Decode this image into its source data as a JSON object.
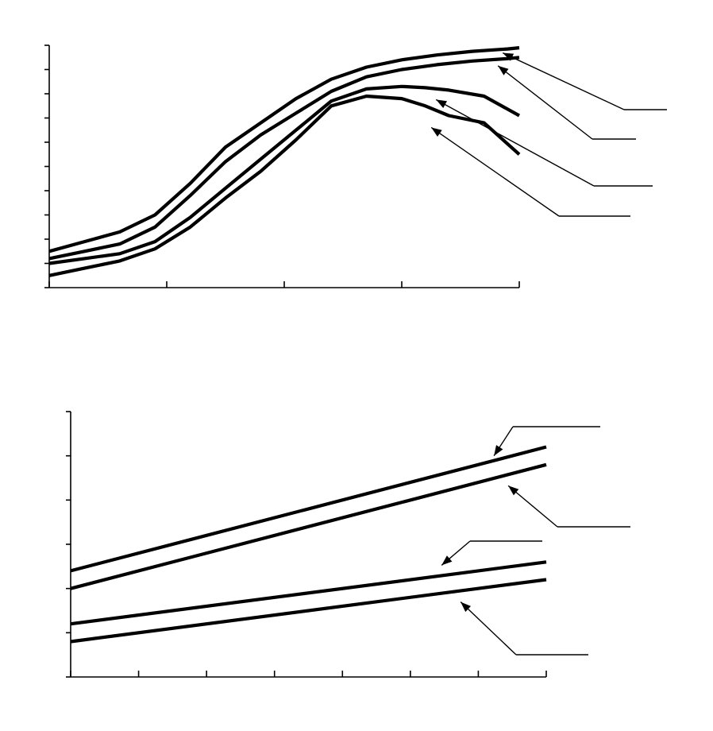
{
  "colors": {
    "ink": "#000000",
    "background": "#ffffff"
  },
  "chart_data": [
    {
      "type": "line",
      "title": "",
      "xlabel": "",
      "ylabel": "",
      "x_ticks": 5,
      "y_ticks": 11,
      "xlim": [
        0,
        4
      ],
      "ylim": [
        0,
        10
      ],
      "grid": false,
      "series": [
        {
          "x": [
            0,
            0.3,
            0.6,
            0.9,
            1.2,
            1.5,
            1.8,
            2.1,
            2.4,
            2.7,
            3.0,
            3.3,
            3.6,
            3.9,
            4.0
          ],
          "y": [
            1.5,
            1.9,
            2.3,
            3.0,
            4.3,
            5.8,
            6.8,
            7.8,
            8.6,
            9.1,
            9.4,
            9.6,
            9.75,
            9.85,
            9.9
          ]
        },
        {
          "x": [
            0,
            0.3,
            0.6,
            0.9,
            1.2,
            1.5,
            1.8,
            2.1,
            2.4,
            2.7,
            3.0,
            3.3,
            3.6,
            3.9,
            4.0
          ],
          "y": [
            1.2,
            1.5,
            1.8,
            2.5,
            3.8,
            5.2,
            6.3,
            7.2,
            8.1,
            8.7,
            9.0,
            9.2,
            9.35,
            9.45,
            9.5
          ]
        },
        {
          "x": [
            0,
            0.3,
            0.6,
            0.9,
            1.2,
            1.5,
            1.8,
            2.1,
            2.4,
            2.7,
            3.0,
            3.2,
            3.4,
            3.7,
            4.0
          ],
          "y": [
            1.0,
            1.2,
            1.4,
            1.9,
            2.9,
            4.1,
            5.3,
            6.5,
            7.7,
            8.2,
            8.3,
            8.25,
            8.15,
            7.9,
            7.1
          ]
        },
        {
          "x": [
            0,
            0.3,
            0.6,
            0.9,
            1.2,
            1.5,
            1.8,
            2.1,
            2.4,
            2.7,
            3.0,
            3.2,
            3.4,
            3.7,
            4.0
          ],
          "y": [
            0.5,
            0.8,
            1.1,
            1.6,
            2.5,
            3.7,
            4.8,
            6.1,
            7.5,
            7.9,
            7.8,
            7.5,
            7.1,
            6.8,
            5.5
          ]
        }
      ]
    },
    {
      "type": "line",
      "title": "",
      "xlabel": "",
      "ylabel": "",
      "x_ticks": 8,
      "y_ticks": 7,
      "xlim": [
        0,
        7
      ],
      "ylim": [
        0,
        6
      ],
      "grid": false,
      "series": [
        {
          "x": [
            0,
            7
          ],
          "y": [
            2.4,
            5.2
          ]
        },
        {
          "x": [
            0,
            7
          ],
          "y": [
            2.0,
            4.8
          ]
        },
        {
          "x": [
            0,
            7
          ],
          "y": [
            1.2,
            2.6
          ]
        },
        {
          "x": [
            0,
            7
          ],
          "y": [
            0.8,
            2.2
          ]
        }
      ]
    }
  ]
}
